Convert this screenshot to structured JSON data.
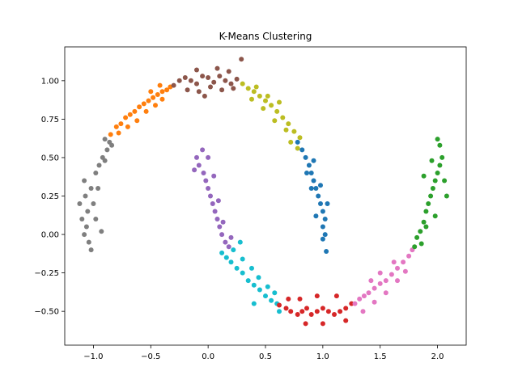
{
  "chart_data": {
    "type": "scatter",
    "title": "K-Means Clustering",
    "xlabel": "",
    "ylabel": "",
    "xlim": [
      -1.25,
      2.25
    ],
    "ylim": [
      -0.72,
      1.22
    ],
    "grid": false,
    "legend": "none",
    "x_ticks": [
      -1.0,
      -0.5,
      0.0,
      0.5,
      1.0,
      1.5,
      2.0
    ],
    "x_tick_labels": [
      "−1.0",
      "−0.5",
      "0.0",
      "0.5",
      "1.0",
      "1.5",
      "2.0"
    ],
    "y_ticks": [
      -0.5,
      -0.25,
      0.0,
      0.25,
      0.5,
      0.75,
      1.0
    ],
    "y_tick_labels": [
      "−0.50",
      "−0.25",
      "0.00",
      "0.25",
      "0.50",
      "0.75",
      "1.00"
    ],
    "series": [
      {
        "color": "#7f7f7f",
        "points": [
          [
            -1.02,
            -0.1
          ],
          [
            -1.04,
            -0.05
          ],
          [
            -1.08,
            0.0
          ],
          [
            -1.06,
            0.05
          ],
          [
            -1.1,
            0.1
          ],
          [
            -1.05,
            0.15
          ],
          [
            -1.12,
            0.2
          ],
          [
            -1.07,
            0.25
          ],
          [
            -1.02,
            0.3
          ],
          [
            -1.08,
            0.35
          ],
          [
            -0.98,
            0.4
          ],
          [
            -0.95,
            0.45
          ],
          [
            -0.92,
            0.5
          ],
          [
            -0.88,
            0.55
          ],
          [
            -0.86,
            0.6
          ],
          [
            -0.9,
            0.48
          ],
          [
            -0.96,
            0.3
          ],
          [
            -1.0,
            0.2
          ],
          [
            -0.98,
            0.1
          ],
          [
            -0.93,
            0.02
          ],
          [
            -0.9,
            0.62
          ],
          [
            -0.84,
            0.58
          ]
        ]
      },
      {
        "color": "#ff7f0e",
        "points": [
          [
            -0.85,
            0.65
          ],
          [
            -0.8,
            0.7
          ],
          [
            -0.76,
            0.72
          ],
          [
            -0.72,
            0.76
          ],
          [
            -0.68,
            0.78
          ],
          [
            -0.64,
            0.8
          ],
          [
            -0.6,
            0.83
          ],
          [
            -0.56,
            0.85
          ],
          [
            -0.52,
            0.87
          ],
          [
            -0.48,
            0.89
          ],
          [
            -0.44,
            0.91
          ],
          [
            -0.4,
            0.93
          ],
          [
            -0.36,
            0.94
          ],
          [
            -0.33,
            0.96
          ],
          [
            -0.78,
            0.66
          ],
          [
            -0.7,
            0.7
          ],
          [
            -0.62,
            0.74
          ],
          [
            -0.54,
            0.8
          ],
          [
            -0.46,
            0.84
          ],
          [
            -0.4,
            0.88
          ],
          [
            -0.5,
            0.93
          ],
          [
            -0.42,
            0.97
          ]
        ]
      },
      {
        "color": "#8c564b",
        "points": [
          [
            -0.3,
            0.97
          ],
          [
            -0.25,
            1.0
          ],
          [
            -0.2,
            1.02
          ],
          [
            -0.15,
            1.0
          ],
          [
            -0.1,
            0.98
          ],
          [
            -0.05,
            1.03
          ],
          [
            0.0,
            1.02
          ],
          [
            0.05,
            0.99
          ],
          [
            0.1,
            1.03
          ],
          [
            0.15,
            1.0
          ],
          [
            0.2,
            0.98
          ],
          [
            0.25,
            1.01
          ],
          [
            -0.18,
            0.94
          ],
          [
            -0.08,
            0.93
          ],
          [
            0.02,
            0.96
          ],
          [
            0.12,
            0.94
          ],
          [
            0.22,
            0.95
          ],
          [
            -0.1,
            1.07
          ],
          [
            0.08,
            1.08
          ],
          [
            0.29,
            1.14
          ],
          [
            -0.03,
            0.9
          ],
          [
            0.18,
            1.06
          ]
        ]
      },
      {
        "color": "#bcbd22",
        "points": [
          [
            0.3,
            0.98
          ],
          [
            0.35,
            0.95
          ],
          [
            0.4,
            0.93
          ],
          [
            0.45,
            0.9
          ],
          [
            0.5,
            0.87
          ],
          [
            0.55,
            0.84
          ],
          [
            0.6,
            0.8
          ],
          [
            0.65,
            0.76
          ],
          [
            0.7,
            0.72
          ],
          [
            0.75,
            0.67
          ],
          [
            0.8,
            0.63
          ],
          [
            0.38,
            0.88
          ],
          [
            0.48,
            0.82
          ],
          [
            0.58,
            0.74
          ],
          [
            0.68,
            0.68
          ],
          [
            0.72,
            0.6
          ],
          [
            0.42,
            0.96
          ],
          [
            0.52,
            0.9
          ],
          [
            0.62,
            0.86
          ],
          [
            0.78,
            0.56
          ]
        ]
      },
      {
        "color": "#1f77b4",
        "points": [
          [
            0.78,
            0.6
          ],
          [
            0.82,
            0.55
          ],
          [
            0.85,
            0.5
          ],
          [
            0.88,
            0.45
          ],
          [
            0.9,
            0.4
          ],
          [
            0.92,
            0.35
          ],
          [
            0.94,
            0.3
          ],
          [
            0.96,
            0.25
          ],
          [
            0.98,
            0.2
          ],
          [
            1.0,
            0.15
          ],
          [
            1.02,
            0.1
          ],
          [
            1.0,
            0.05
          ],
          [
            1.02,
            0.0
          ],
          [
            1.0,
            -0.03
          ],
          [
            0.86,
            0.4
          ],
          [
            0.92,
            0.48
          ],
          [
            0.98,
            0.32
          ],
          [
            1.04,
            0.2
          ],
          [
            0.94,
            0.12
          ],
          [
            0.9,
            0.3
          ],
          [
            1.03,
            -0.11
          ]
        ]
      },
      {
        "color": "#9467bd",
        "points": [
          [
            -0.1,
            0.5
          ],
          [
            -0.05,
            0.55
          ],
          [
            -0.08,
            0.45
          ],
          [
            -0.04,
            0.4
          ],
          [
            -0.02,
            0.35
          ],
          [
            0.0,
            0.3
          ],
          [
            0.02,
            0.25
          ],
          [
            0.04,
            0.2
          ],
          [
            0.06,
            0.15
          ],
          [
            0.08,
            0.1
          ],
          [
            0.1,
            0.05
          ],
          [
            0.12,
            0.0
          ],
          [
            0.15,
            -0.05
          ],
          [
            0.18,
            -0.08
          ],
          [
            0.0,
            0.5
          ],
          [
            0.05,
            0.38
          ],
          [
            0.09,
            0.22
          ],
          [
            -0.12,
            0.42
          ],
          [
            0.13,
            0.08
          ],
          [
            0.2,
            -0.02
          ]
        ]
      },
      {
        "color": "#17becf",
        "points": [
          [
            0.12,
            -0.12
          ],
          [
            0.16,
            -0.15
          ],
          [
            0.2,
            -0.18
          ],
          [
            0.25,
            -0.22
          ],
          [
            0.3,
            -0.25
          ],
          [
            0.35,
            -0.3
          ],
          [
            0.4,
            -0.33
          ],
          [
            0.45,
            -0.36
          ],
          [
            0.5,
            -0.4
          ],
          [
            0.55,
            -0.43
          ],
          [
            0.6,
            -0.45
          ],
          [
            0.22,
            -0.1
          ],
          [
            0.3,
            -0.16
          ],
          [
            0.38,
            -0.22
          ],
          [
            0.44,
            -0.28
          ],
          [
            0.52,
            -0.34
          ],
          [
            0.58,
            -0.38
          ],
          [
            0.4,
            -0.45
          ],
          [
            0.28,
            -0.05
          ],
          [
            0.62,
            -0.5
          ]
        ]
      },
      {
        "color": "#d62728",
        "points": [
          [
            0.62,
            -0.46
          ],
          [
            0.68,
            -0.48
          ],
          [
            0.72,
            -0.5
          ],
          [
            0.78,
            -0.52
          ],
          [
            0.82,
            -0.5
          ],
          [
            0.86,
            -0.48
          ],
          [
            0.9,
            -0.52
          ],
          [
            0.95,
            -0.5
          ],
          [
            1.0,
            -0.48
          ],
          [
            1.05,
            -0.5
          ],
          [
            1.1,
            -0.52
          ],
          [
            1.15,
            -0.5
          ],
          [
            1.2,
            -0.48
          ],
          [
            1.25,
            -0.45
          ],
          [
            0.7,
            -0.42
          ],
          [
            0.85,
            -0.58
          ],
          [
            1.0,
            -0.58
          ],
          [
            1.12,
            -0.4
          ],
          [
            0.95,
            -0.4
          ],
          [
            0.8,
            -0.42
          ],
          [
            1.2,
            -0.56
          ]
        ]
      },
      {
        "color": "#e377c2",
        "points": [
          [
            1.28,
            -0.45
          ],
          [
            1.32,
            -0.42
          ],
          [
            1.36,
            -0.4
          ],
          [
            1.4,
            -0.38
          ],
          [
            1.45,
            -0.35
          ],
          [
            1.5,
            -0.32
          ],
          [
            1.55,
            -0.3
          ],
          [
            1.6,
            -0.26
          ],
          [
            1.65,
            -0.22
          ],
          [
            1.7,
            -0.18
          ],
          [
            1.75,
            -0.14
          ],
          [
            1.78,
            -0.1
          ],
          [
            1.35,
            -0.5
          ],
          [
            1.45,
            -0.44
          ],
          [
            1.55,
            -0.38
          ],
          [
            1.65,
            -0.3
          ],
          [
            1.72,
            -0.24
          ],
          [
            1.5,
            -0.25
          ],
          [
            1.62,
            -0.18
          ],
          [
            1.42,
            -0.3
          ]
        ]
      },
      {
        "color": "#2ca02c",
        "points": [
          [
            1.8,
            -0.08
          ],
          [
            1.82,
            -0.02
          ],
          [
            1.85,
            0.02
          ],
          [
            1.88,
            0.08
          ],
          [
            1.9,
            0.15
          ],
          [
            1.92,
            0.2
          ],
          [
            1.94,
            0.25
          ],
          [
            1.96,
            0.3
          ],
          [
            1.98,
            0.35
          ],
          [
            2.0,
            0.4
          ],
          [
            2.02,
            0.45
          ],
          [
            2.04,
            0.5
          ],
          [
            2.02,
            0.58
          ],
          [
            1.95,
            0.48
          ],
          [
            2.06,
            0.35
          ],
          [
            2.08,
            0.25
          ],
          [
            1.9,
            0.05
          ],
          [
            1.86,
            -0.06
          ],
          [
            1.98,
            0.12
          ],
          [
            2.0,
            0.62
          ],
          [
            1.88,
            0.38
          ]
        ]
      }
    ]
  }
}
